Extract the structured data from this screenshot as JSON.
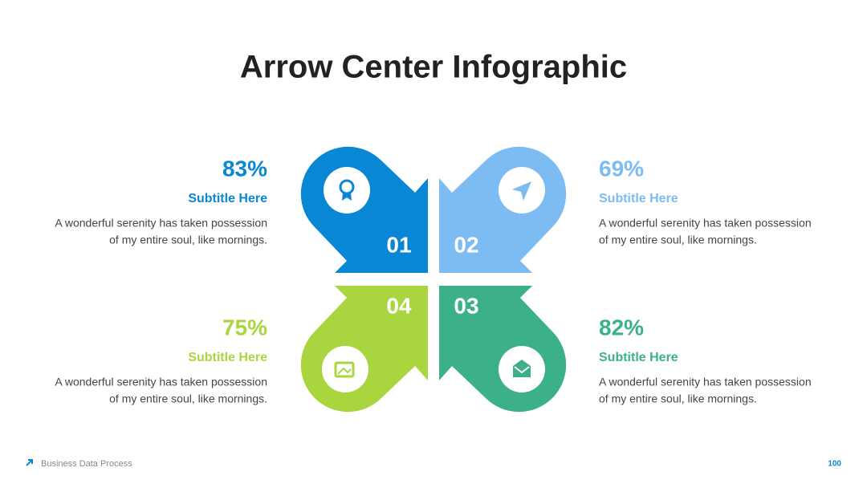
{
  "header": {
    "title": "Arrow Center Infographic"
  },
  "items": [
    {
      "number": "01",
      "percent": "83%",
      "subtitle": "Subtitle Here",
      "description": [
        "A wonderful serenity has taken possession",
        "of my entire soul, like mornings."
      ]
    },
    {
      "number": "02",
      "percent": "69%",
      "subtitle": "Subtitle Here",
      "description": [
        "A wonderful serenity has taken possession",
        "of my entire soul, like mornings."
      ]
    },
    {
      "number": "03",
      "percent": "82%",
      "subtitle": "Subtitle Here",
      "description": [
        "A wonderful serenity has taken possession",
        "of my entire soul, like mornings."
      ]
    },
    {
      "number": "04",
      "percent": "75%",
      "subtitle": "Subtitle Here",
      "description": [
        "A wonderful serenity has taken possession",
        "of my entire soul, like mornings."
      ]
    }
  ],
  "footer": {
    "text": "Business Data Process",
    "page": "100"
  }
}
